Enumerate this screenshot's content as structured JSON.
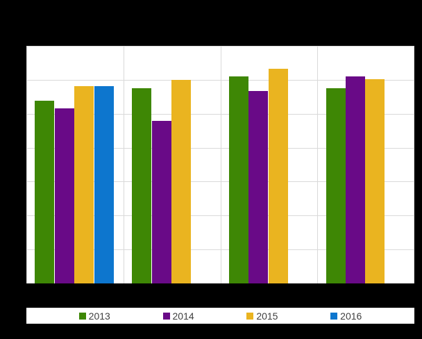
{
  "colors": {
    "background_band": "#000000",
    "plot_background": "#FFFFFF",
    "gridline": "#D9D9D9",
    "legend_text": "#3F3F3F"
  },
  "legend": {
    "position": "bottom"
  },
  "chart_data": {
    "type": "bar",
    "categories": [
      "",
      "",
      "",
      ""
    ],
    "series": [
      {
        "name": "2013",
        "color": "#3E8705",
        "values": [
          5.39,
          5.76,
          6.09,
          5.76
        ]
      },
      {
        "name": "2014",
        "color": "#690A87",
        "values": [
          5.15,
          4.78,
          5.66,
          6.1
        ]
      },
      {
        "name": "2015",
        "color": "#EAB420",
        "values": [
          5.82,
          6.0,
          6.33,
          6.01
        ]
      },
      {
        "name": "2016",
        "color": "#0D76CE",
        "values": [
          5.81,
          null,
          null,
          null
        ]
      }
    ],
    "ylim": [
      0,
      7
    ],
    "y_gridline_step": 1,
    "grid": true,
    "legend_position": "bottom",
    "note": "title, y-axis tick labels and x-axis category labels are covered by solid black redaction bars; values measured in gridline units"
  }
}
